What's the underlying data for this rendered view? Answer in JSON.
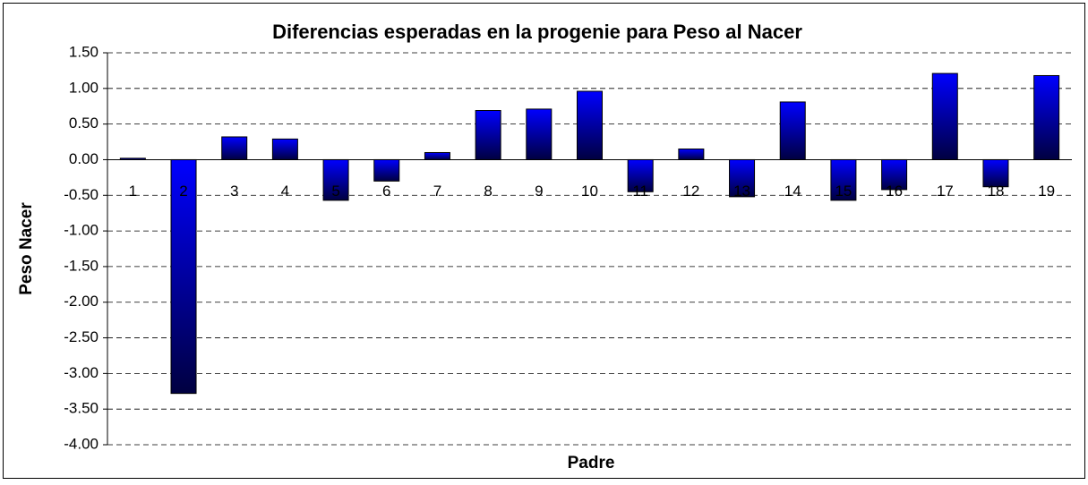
{
  "chart_data": {
    "type": "bar",
    "title": "Diferencias esperadas en la progenie para Peso al Nacer",
    "x_label": "Padre",
    "y_label": "Peso Nacer",
    "categories": [
      "1",
      "2",
      "3",
      "4",
      "5",
      "6",
      "7",
      "8",
      "9",
      "10",
      "11",
      "12",
      "13",
      "14",
      "15",
      "16",
      "17",
      "18",
      "19"
    ],
    "values": [
      0.02,
      -3.28,
      0.32,
      0.29,
      -0.57,
      -0.3,
      0.1,
      0.69,
      0.71,
      0.96,
      -0.45,
      0.15,
      -0.52,
      0.81,
      -0.57,
      -0.42,
      1.21,
      -0.38,
      1.18
    ],
    "color": "#0000ff",
    "ylim": [
      -4,
      1.5
    ],
    "yticks": [
      {
        "value": 1.5,
        "label": "1.50"
      },
      {
        "value": 1,
        "label": "1.00"
      },
      {
        "value": 0.5,
        "label": "0.50"
      },
      {
        "value": 0,
        "label": "0.00"
      },
      {
        "value": -0.5,
        "label": "-0.50"
      },
      {
        "value": -1,
        "label": "-1.00"
      },
      {
        "value": -1.5,
        "label": "-1.50"
      },
      {
        "value": -2,
        "label": "-2.00"
      },
      {
        "value": -2.5,
        "label": "-2.50"
      },
      {
        "value": -3,
        "label": "-3.00"
      },
      {
        "value": -3.5,
        "label": "-3.50"
      },
      {
        "value": -4,
        "label": "-4.00"
      }
    ],
    "grid": true
  }
}
